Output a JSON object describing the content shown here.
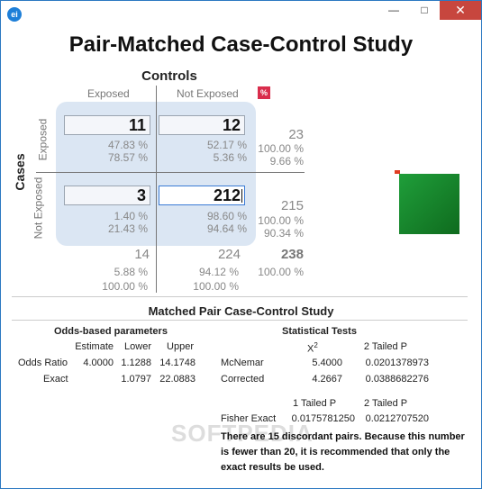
{
  "window": {
    "icon_label": "ei",
    "minimize": "—",
    "maximize": "□",
    "close": "✕"
  },
  "title": "Pair-Matched Case-Control Study",
  "controls_label": "Controls",
  "cases_label": "Cases",
  "col_exposed": "Exposed",
  "col_not_exposed": "Not Exposed",
  "row_exposed": "Exposed",
  "row_not_exposed": "Not Exposed",
  "percent_button": "%",
  "cells": {
    "a": {
      "value": "11",
      "p1": "47.83 %",
      "p2": "78.57 %"
    },
    "b": {
      "value": "12",
      "p1": "52.17 %",
      "p2": "5.36 %"
    },
    "c": {
      "value": "3",
      "p1": "1.40 %",
      "p2": "21.43 %"
    },
    "d": {
      "value": "212",
      "p1": "98.60 %",
      "p2": "94.64 %"
    }
  },
  "row_totals": [
    {
      "value": "23",
      "p1": "100.00 %",
      "p2": "9.66 %"
    },
    {
      "value": "215",
      "p1": "100.00 %",
      "p2": "90.34 %"
    }
  ],
  "col_totals": [
    {
      "value": "14",
      "p1": "5.88 %",
      "p2": "100.00 %"
    },
    {
      "value": "224",
      "p1": "94.12 %",
      "p2": "100.00 %"
    }
  ],
  "grand_total": {
    "value": "238",
    "p1": "100.00 %"
  },
  "results": {
    "title": "Matched Pair Case-Control Study",
    "odds_title": "Odds-based parameters",
    "odds_headers": [
      "Estimate",
      "Lower",
      "Upper"
    ],
    "odds_rows": [
      {
        "label": "Odds Ratio",
        "estimate": "4.0000",
        "lower": "1.1288",
        "upper": "14.1748"
      },
      {
        "label": "Exact",
        "estimate": "",
        "lower": "1.0797",
        "upper": "22.0883"
      }
    ],
    "stat_title": "Statistical Tests",
    "stat_headers": [
      "X",
      "2",
      "2 Tailed P"
    ],
    "stat_rows": [
      {
        "label": "McNemar",
        "chi": "5.4000",
        "p2": "0.0201378973"
      },
      {
        "label": "Corrected",
        "chi": "4.2667",
        "p2": "0.0388682276"
      }
    ],
    "fisher_headers": [
      "1 Tailed P",
      "2 Tailed P"
    ],
    "fisher_row": {
      "label": "Fisher Exact",
      "p1": "0.0175781250",
      "p2": "0.0212707520"
    },
    "note": "There are 15 discordant pairs.  Because this number is fewer than 20, it is recommended that only the exact results be used."
  },
  "watermark": "SOFTPEDIA",
  "colors": {
    "accent": "#d92d4c",
    "green": "#1f9e3a",
    "blue_bg": "#dbe6f3"
  }
}
